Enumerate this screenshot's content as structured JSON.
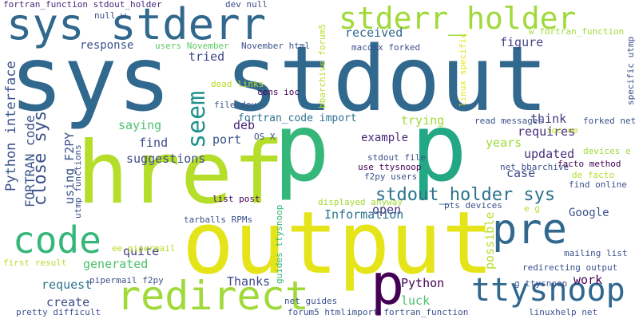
{
  "words": [
    {
      "text": "sys stdout",
      "color": "#31688e"
    },
    {
      "text": "href",
      "color": "#b5de2b"
    },
    {
      "text": "output",
      "color": "#e5e419"
    },
    {
      "text": "p",
      "color": "#35b779"
    },
    {
      "text": "p",
      "color": "#22a884"
    },
    {
      "text": "sys stderr",
      "color": "#31688e"
    },
    {
      "text": "redirect",
      "color": "#a0da39"
    },
    {
      "text": "code",
      "color": "#35b779"
    },
    {
      "text": "pre",
      "color": "#31688e"
    },
    {
      "text": "ttysnoop",
      "color": "#31688e"
    },
    {
      "text": "p",
      "color": "#440154"
    },
    {
      "text": "stderr_holder",
      "color": "#a0da39"
    },
    {
      "text": "seem",
      "color": "#21918c"
    },
    {
      "text": "stdout_holder sys",
      "color": "#2c728e"
    },
    {
      "text": "close sys",
      "color": "#3b528b"
    },
    {
      "text": "Python interface",
      "color": "#3b528b"
    },
    {
      "text": "FORTRAN code",
      "color": "#3b528b"
    },
    {
      "text": "fortran_function stdout_holder",
      "color": "#482878"
    },
    {
      "text": "response",
      "color": "#3b528b"
    },
    {
      "text": "tried",
      "color": "#3e4989"
    },
    {
      "text": "received",
      "color": "#31688e"
    },
    {
      "text": "figure",
      "color": "#414487"
    },
    {
      "text": "saying",
      "color": "#4ac16d"
    },
    {
      "text": "suggestions",
      "color": "#3e4989"
    },
    {
      "text": "find",
      "color": "#3e4989"
    },
    {
      "text": "port",
      "color": "#3b528b"
    },
    {
      "text": "deb",
      "color": "#482878"
    },
    {
      "text": "fortran_code import",
      "color": "#2c728e"
    },
    {
      "text": "trying",
      "color": "#a0da39"
    },
    {
      "text": "think",
      "color": "#443983"
    },
    {
      "text": "requires",
      "color": "#472d7b"
    },
    {
      "text": "example",
      "color": "#482878"
    },
    {
      "text": "years",
      "color": "#a0da39"
    },
    {
      "text": "updated",
      "color": "#46327e"
    },
    {
      "text": "case",
      "color": "#3e4989"
    },
    {
      "text": "open",
      "color": "#46327e"
    },
    {
      "text": "Information",
      "color": "#2c728e"
    },
    {
      "text": "Google",
      "color": "#3b528b"
    },
    {
      "text": "quite",
      "color": "#443983"
    },
    {
      "text": "generated",
      "color": "#4ac16d"
    },
    {
      "text": "request",
      "color": "#2c728e"
    },
    {
      "text": "create",
      "color": "#3e4989"
    },
    {
      "text": "Thanks",
      "color": "#3e4989"
    },
    {
      "text": "Python",
      "color": "#440154"
    },
    {
      "text": "luck",
      "color": "#4ac16d"
    },
    {
      "text": "work",
      "color": "#440154"
    },
    {
      "text": "using F2PY",
      "color": "#3b528b"
    },
    {
      "text": "possible",
      "color": "#b5de2b"
    },
    {
      "text": "users November",
      "color": "#5ec962"
    },
    {
      "text": "November html",
      "color": "#3b528b"
    },
    {
      "text": "macosx forked",
      "color": "#3b528b"
    },
    {
      "text": "null w",
      "color": "#3e4989"
    },
    {
      "text": "dev null",
      "color": "#3e4989"
    },
    {
      "text": "bbarchive forum5",
      "color": "#b5de2b"
    },
    {
      "text": "w fortran_function",
      "color": "#a0da39"
    },
    {
      "text": "linux specific",
      "color": "#e5e419"
    },
    {
      "text": "specific utmp",
      "color": "#3b528b"
    },
    {
      "text": "dead links",
      "color": "#b5de2b"
    },
    {
      "text": "cens ioc",
      "color": "#440154"
    },
    {
      "text": "file dev",
      "color": "#3b528b"
    },
    {
      "text": "read messages",
      "color": "#3b528b"
    },
    {
      "text": "ioc ee",
      "color": "#b5de2b"
    },
    {
      "text": "forked net",
      "color": "#3b528b"
    },
    {
      "text": "devices e",
      "color": "#a0da39"
    },
    {
      "text": "OS X",
      "color": "#3b528b"
    },
    {
      "text": "stdout file",
      "color": "#3b528b"
    },
    {
      "text": "use ttysnoop",
      "color": "#440154"
    },
    {
      "text": "f2py users",
      "color": "#3b528b"
    },
    {
      "text": "net bbarchive",
      "color": "#3b528b"
    },
    {
      "text": "facto method",
      "color": "#440154"
    },
    {
      "text": "de facto",
      "color": "#b5de2b"
    },
    {
      "text": "find online",
      "color": "#3b528b"
    },
    {
      "text": "utmp functions",
      "color": "#3b528b"
    },
    {
      "text": "list post",
      "color": "#440154"
    },
    {
      "text": "displayed anyway",
      "color": "#a0da39"
    },
    {
      "text": "pts devices",
      "color": "#3b528b"
    },
    {
      "text": "e g",
      "color": "#b5de2b"
    },
    {
      "text": "tarballs RPMs",
      "color": "#3b528b"
    },
    {
      "text": "guides ttysnoop",
      "color": "#35b779"
    },
    {
      "text": "ee pipermail",
      "color": "#b5de2b"
    },
    {
      "text": "first result",
      "color": "#b5de2b"
    },
    {
      "text": "pipermail f2py",
      "color": "#3b528b"
    },
    {
      "text": "mailing list",
      "color": "#3b528b"
    },
    {
      "text": "redirecting output",
      "color": "#3b528b"
    },
    {
      "text": "g ttysnoop",
      "color": "#3b528b"
    },
    {
      "text": "net guides",
      "color": "#3b528b"
    },
    {
      "text": "forum5 html",
      "color": "#3b528b"
    },
    {
      "text": "import fortran_function",
      "color": "#3b528b"
    },
    {
      "text": "linuxhelp net",
      "color": "#3b528b"
    },
    {
      "text": "pretty difficult",
      "color": "#3b528b"
    }
  ]
}
